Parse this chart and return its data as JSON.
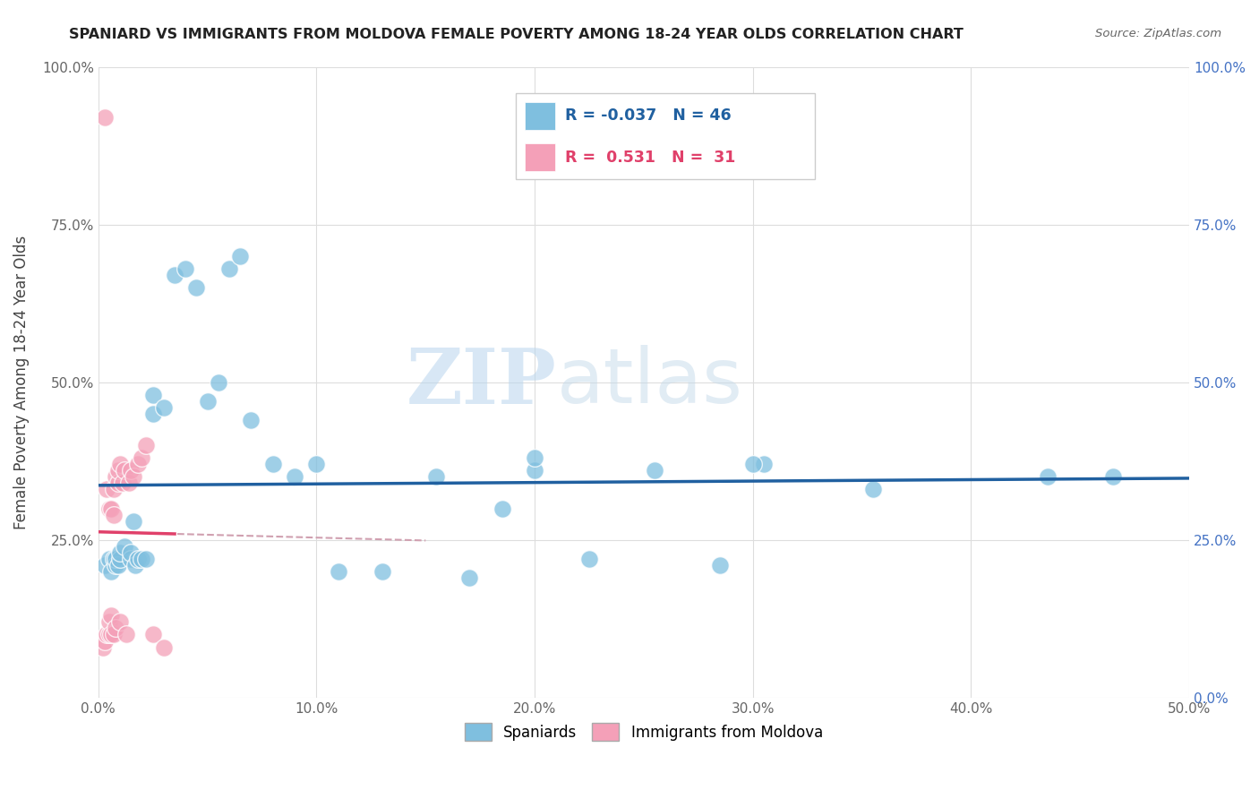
{
  "title": "SPANIARD VS IMMIGRANTS FROM MOLDOVA FEMALE POVERTY AMONG 18-24 YEAR OLDS CORRELATION CHART",
  "source": "Source: ZipAtlas.com",
  "ylabel": "Female Poverty Among 18-24 Year Olds",
  "legend_spaniards": "Spaniards",
  "legend_moldova": "Immigrants from Moldova",
  "R_spaniards": -0.037,
  "N_spaniards": 46,
  "R_moldova": 0.531,
  "N_moldova": 31,
  "color_spaniards": "#7fbfdf",
  "color_moldova": "#f4a0b8",
  "trendline_spaniards": "#2060a0",
  "trendline_moldova": "#e0406a",
  "trendline_dashed": "#d0a0b0",
  "watermark_zip": "ZIP",
  "watermark_atlas": "atlas",
  "spaniards_x": [
    0.3,
    0.5,
    0.6,
    0.7,
    0.8,
    0.8,
    0.9,
    1.0,
    1.0,
    1.2,
    1.5,
    1.5,
    1.6,
    1.7,
    1.8,
    2.0,
    2.2,
    2.5,
    2.5,
    3.0,
    3.5,
    4.0,
    4.5,
    5.0,
    5.5,
    6.0,
    6.5,
    7.0,
    8.0,
    9.0,
    10.0,
    11.0,
    13.0,
    15.5,
    17.0,
    18.5,
    20.0,
    22.5,
    25.5,
    28.5,
    30.5,
    35.5,
    43.5,
    46.5,
    20.0,
    30.0
  ],
  "spaniards_y": [
    21.0,
    22.0,
    20.0,
    22.0,
    21.0,
    22.0,
    21.0,
    22.0,
    23.0,
    24.0,
    22.0,
    23.0,
    28.0,
    21.0,
    22.0,
    22.0,
    22.0,
    45.0,
    48.0,
    46.0,
    67.0,
    68.0,
    65.0,
    47.0,
    50.0,
    68.0,
    70.0,
    44.0,
    37.0,
    35.0,
    37.0,
    20.0,
    20.0,
    35.0,
    19.0,
    30.0,
    36.0,
    22.0,
    36.0,
    21.0,
    37.0,
    33.0,
    35.0,
    35.0,
    38.0,
    37.0
  ],
  "moldova_x": [
    0.2,
    0.3,
    0.3,
    0.4,
    0.4,
    0.5,
    0.5,
    0.5,
    0.6,
    0.6,
    0.6,
    0.7,
    0.7,
    0.7,
    0.8,
    0.8,
    0.9,
    0.9,
    1.0,
    1.0,
    1.1,
    1.2,
    1.3,
    1.4,
    1.5,
    1.6,
    1.8,
    2.0,
    2.2,
    2.5,
    3.0
  ],
  "moldova_y": [
    8.0,
    9.0,
    92.0,
    10.0,
    33.0,
    10.0,
    30.0,
    12.0,
    10.0,
    13.0,
    30.0,
    33.0,
    29.0,
    10.0,
    35.0,
    11.0,
    34.0,
    36.0,
    37.0,
    12.0,
    34.0,
    36.0,
    10.0,
    34.0,
    36.0,
    35.0,
    37.0,
    38.0,
    40.0,
    10.0,
    8.0
  ],
  "xlim": [
    0,
    50
  ],
  "ylim": [
    0,
    100
  ],
  "xticks": [
    0,
    10,
    20,
    30,
    40,
    50
  ],
  "yticks": [
    0,
    25,
    50,
    75,
    100
  ],
  "grid_color": "#dddddd"
}
